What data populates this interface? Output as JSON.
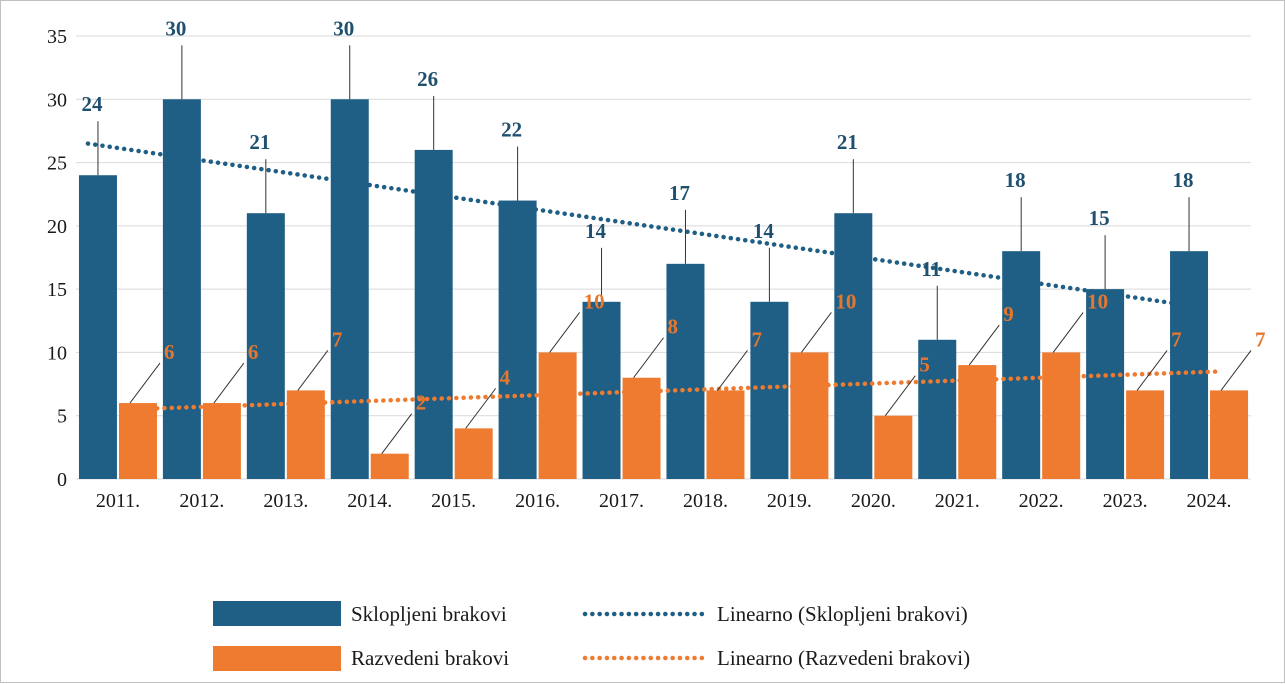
{
  "chart_data": {
    "type": "bar",
    "title": "",
    "xlabel": "",
    "ylabel": "",
    "ylim": [
      0,
      35
    ],
    "yticks": [
      0,
      5,
      10,
      15,
      20,
      25,
      30,
      35
    ],
    "grid": true,
    "legend_position": "bottom",
    "categories": [
      "2011.",
      "2012.",
      "2013.",
      "2014.",
      "2015.",
      "2016.",
      "2017.",
      "2018.",
      "2019.",
      "2020.",
      "2021.",
      "2022.",
      "2023.",
      "2024."
    ],
    "series": [
      {
        "name": "Sklopljeni brakovi",
        "color": "#1f5f85",
        "label_color": "#1f5070",
        "values": [
          24,
          30,
          21,
          30,
          26,
          22,
          14,
          17,
          14,
          21,
          11,
          18,
          15,
          18
        ]
      },
      {
        "name": "Razvedeni brakovi",
        "color": "#ee7b2f",
        "label_color": "#e8772e",
        "values": [
          6,
          6,
          7,
          2,
          4,
          10,
          8,
          7,
          10,
          5,
          9,
          10,
          7,
          7
        ]
      }
    ],
    "trendlines": [
      {
        "name": "Linearno (Sklopljeni brakovi)",
        "series": 0,
        "color": "#1f5f85",
        "start": 26.5,
        "end": 13.8
      },
      {
        "name": "Linearno (Razvedeni brakovi)",
        "series": 1,
        "color": "#ee7b2f",
        "start": 5.5,
        "end": 8.5
      }
    ]
  }
}
